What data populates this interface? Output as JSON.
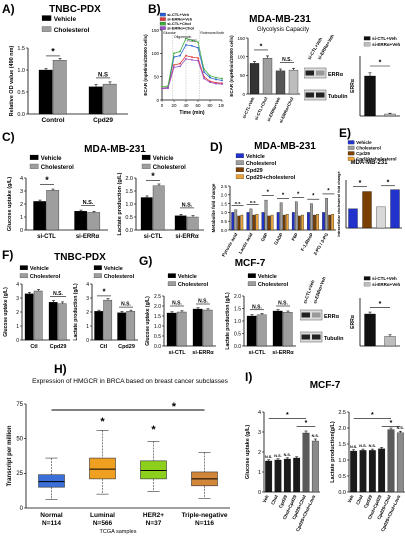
{
  "panels": {
    "A": {
      "letter": "A)",
      "title": "TNBC-PDX"
    },
    "B": {
      "letter": "B)",
      "title": "MDA-MB-231",
      "subtitle": "Glycolysis Capacity",
      "trace_legend": [
        "si-CTL+Veh",
        "si-ERRα+Veh",
        "si-CTL+Chol",
        "si-ERRα+Chol"
      ],
      "trace_markers": [
        "Glucose",
        "Oligomycin",
        "FCCP",
        "Rotenone/Antimycin A"
      ],
      "blot_labels": [
        "ERRα",
        "Tubulin"
      ]
    },
    "C": {
      "letter": "C)",
      "title": "MDA-MB-231"
    },
    "D": {
      "letter": "D)",
      "title": "MDA-MB-231"
    },
    "E": {
      "letter": "E)",
      "title": "MDA-MB-231"
    },
    "F": {
      "letter": "F)",
      "title": "TNBC-PDX"
    },
    "G": {
      "letter": "G)",
      "title": "MCF-7",
      "blot_labels": [
        "ERRα",
        "Tubulin"
      ]
    },
    "H": {
      "letter": "H)",
      "title": "Expression of HMGCR in BRCA based on breast cancer subclasses"
    },
    "I": {
      "letter": "I)",
      "title": "MCF-7"
    }
  },
  "colors": {
    "vehicle": "#000000",
    "cholesterol": "#9e9e9e",
    "cpd29": "#7b3f00",
    "cpd29_chol": "#e8a33c",
    "blue": "#2233cc",
    "normal_box": "#3b6fd8",
    "luminal_box": "#f0a020",
    "her2_box": "#8ccf1d",
    "tneg_box": "#d2863a",
    "star": "#1a1a1a"
  },
  "chart_data": [
    {
      "panel": "A",
      "type": "bar",
      "ylabel": "Relative OD value (490 nm)",
      "categories": [
        "Control",
        "Cpd29"
      ],
      "series": [
        {
          "name": "Vehicle",
          "values": [
            1.0,
            0.62
          ],
          "errors": [
            0.03,
            0.05
          ]
        },
        {
          "name": "Cholesterol",
          "values": [
            1.22,
            0.68
          ],
          "errors": [
            0.04,
            0.05
          ]
        }
      ],
      "ylim": [
        0,
        1.5
      ],
      "yticks": [
        "0.0",
        "0.5",
        "1.0",
        "1.5"
      ],
      "annotations": [
        "*",
        "N.S"
      ]
    },
    {
      "panel": "B",
      "type": "line",
      "xlabel": "Time (min)",
      "ylabel": "ECAR (mpH/min/20000 cells)",
      "x": [
        0,
        10,
        20,
        30,
        40,
        50,
        60,
        70,
        80,
        90,
        100
      ],
      "series": [
        {
          "name": "si-CTL+Veh",
          "values": [
            25,
            27,
            92,
            95,
            118,
            116,
            112,
            60,
            48,
            44,
            42
          ]
        },
        {
          "name": "si-ERRα+Veh",
          "values": [
            25,
            26,
            75,
            78,
            95,
            92,
            90,
            50,
            40,
            37,
            36
          ]
        },
        {
          "name": "si-CTL+Chol",
          "values": [
            28,
            30,
            100,
            104,
            132,
            128,
            124,
            66,
            52,
            48,
            46
          ]
        },
        {
          "name": "si-ERRα+Chol",
          "values": [
            24,
            25,
            70,
            72,
            88,
            86,
            84,
            46,
            38,
            35,
            34
          ]
        }
      ],
      "xlim": [
        0,
        100
      ],
      "ylim": [
        0,
        150
      ],
      "xticks": [
        "0",
        "20",
        "40",
        "60",
        "80",
        "100"
      ],
      "yticks": [
        "0",
        "50",
        "100",
        "150"
      ]
    },
    {
      "panel": "B",
      "type": "bar",
      "ylabel": "ECAR (mpH/min/20000 cells)",
      "categories": [
        "si-CTL+Veh",
        "si-CTL+Chol",
        "si-ERRα+Veh",
        "si-ERRα+Chol"
      ],
      "values": [
        82,
        96,
        62,
        64
      ],
      "errors": [
        5,
        6,
        5,
        5
      ],
      "ylim": [
        0,
        150
      ],
      "yticks": [
        "0",
        "50",
        "100",
        "150"
      ],
      "annotations": [
        "*",
        "N.S."
      ]
    },
    {
      "panel": "B",
      "type": "bar",
      "ylabel": "ERRα",
      "categories": [
        "si-CTL+Veh",
        "si-ERRα+Veh"
      ],
      "legend": [
        "si-CTL+Veh",
        "si-ERRα+Veh"
      ],
      "values": [
        1.0,
        0.05
      ],
      "errors": [
        0.08,
        0.02
      ],
      "ylim": [
        0,
        1.5
      ],
      "annotations": [
        "*"
      ]
    },
    {
      "panel": "C",
      "type": "bar",
      "ylabel": "Glucose uptake (g/L)",
      "categories": [
        "si-CTL",
        "si-ERRα"
      ],
      "series": [
        {
          "name": "Vehicle",
          "values": [
            2.2,
            1.45
          ],
          "errors": [
            0.1,
            0.08
          ]
        },
        {
          "name": "Cholesterol",
          "values": [
            3.05,
            1.35
          ],
          "errors": [
            0.1,
            0.08
          ]
        }
      ],
      "ylim": [
        0,
        4
      ],
      "yticks": [
        "0",
        "1",
        "2",
        "3",
        "4"
      ],
      "annotations": [
        "*",
        "N.S."
      ]
    },
    {
      "panel": "C",
      "type": "bar",
      "ylabel": "Lactate production (g/L)",
      "categories": [
        "si-CTL",
        "si-ERRα"
      ],
      "series": [
        {
          "name": "Vehicle",
          "values": [
            1.25,
            0.55
          ],
          "errors": [
            0.06,
            0.05
          ]
        },
        {
          "name": "Cholesterol",
          "values": [
            1.7,
            0.5
          ],
          "errors": [
            0.07,
            0.05
          ]
        }
      ],
      "ylim": [
        0,
        2.0
      ],
      "yticks": [
        "0.0",
        "0.5",
        "1.0",
        "1.5",
        "2.0"
      ],
      "annotations": [
        "*",
        "N.S."
      ]
    },
    {
      "panel": "D",
      "type": "bar",
      "ylabel": "Metabolite fold change",
      "categories": [
        "Pyruvic acid",
        "Lactic acid",
        "G6P",
        "GADP",
        "F6P",
        "F-1,6bisP",
        "2-PG / 3-PG"
      ],
      "series": [
        {
          "name": "Vehicle",
          "values": [
            1.0,
            1.0,
            1.0,
            1.0,
            1.0,
            1.0,
            1.0
          ]
        },
        {
          "name": "Cholesterol",
          "values": [
            1.15,
            1.2,
            1.7,
            1.55,
            1.6,
            1.5,
            1.8
          ]
        },
        {
          "name": "Cpd29",
          "values": [
            0.8,
            0.85,
            0.8,
            0.85,
            0.8,
            0.85,
            0.85
          ]
        },
        {
          "name": "Cpd29+cholesterol",
          "values": [
            0.85,
            0.9,
            0.85,
            0.9,
            0.85,
            0.9,
            0.9
          ]
        }
      ],
      "ylim": [
        0,
        2.5
      ],
      "yticks": [
        "0.0",
        "0.5",
        "1.0",
        "1.5",
        "2.0",
        "2.5"
      ],
      "annotations": [
        "n.s",
        "n.s",
        "*",
        "*",
        "*",
        "*",
        "*"
      ]
    },
    {
      "panel": "E",
      "type": "bar",
      "ylabel": "Intracellular cholesterol fold change",
      "categories": [
        "Vehicle",
        "Cholesterol",
        "Cpd29",
        "Cpd29+cholesterol"
      ],
      "legend": [
        "Vehicle",
        "Cholesterol",
        "Cpd29",
        "Cpd29+cholesterol"
      ],
      "values": [
        1.0,
        1.9,
        1.1,
        2.0
      ],
      "ylim": [
        0,
        2.5
      ],
      "annotations": [
        "*",
        "*"
      ]
    },
    {
      "panel": "F",
      "type": "bar",
      "ylabel": "Glucose uptake (g/L)",
      "categories": [
        "Ctl",
        "Cpd29"
      ],
      "series": [
        {
          "name": "Vehicle",
          "values": [
            3.3,
            2.7
          ],
          "errors": [
            0.1,
            0.12
          ]
        },
        {
          "name": "Cholesterol",
          "values": [
            3.5,
            2.6
          ],
          "errors": [
            0.1,
            0.12
          ]
        }
      ],
      "ylim": [
        0,
        4
      ],
      "yticks": [
        "0",
        "1",
        "2",
        "3",
        "4"
      ],
      "annotations": [
        "N.S."
      ]
    },
    {
      "panel": "F",
      "type": "bar",
      "ylabel": "Lactate production (g/L)",
      "categories": [
        "Ctl",
        "Cpd29"
      ],
      "series": [
        {
          "name": "Vehicle",
          "values": [
            2.05,
            1.95
          ],
          "errors": [
            0.08,
            0.08
          ]
        },
        {
          "name": "Cholesterol",
          "values": [
            2.85,
            2.05
          ],
          "errors": [
            0.1,
            0.08
          ]
        }
      ],
      "ylim": [
        0,
        4
      ],
      "yticks": [
        "0",
        "1",
        "2",
        "3",
        "4"
      ],
      "annotations": [
        "*",
        "N.S."
      ]
    },
    {
      "panel": "G",
      "type": "bar",
      "ylabel": "Glucose uptake (g/L)",
      "categories": [
        "si-CTL",
        "si-ERRα"
      ],
      "series": [
        {
          "name": "Vehicle",
          "values": [
            1.65,
            1.85
          ],
          "errors": [
            0.06,
            0.06
          ]
        },
        {
          "name": "Cholesterol",
          "values": [
            1.7,
            1.8
          ],
          "errors": [
            0.06,
            0.06
          ]
        }
      ],
      "ylim": [
        0,
        2.5
      ],
      "yticks": [
        "0.0",
        "0.5",
        "1.0",
        "1.5",
        "2.0",
        "2.5"
      ],
      "annotations": [
        "N.S.",
        "N.S."
      ]
    },
    {
      "panel": "G",
      "type": "bar",
      "ylabel": "Lactate production (g/L)",
      "categories": [
        "si-CTL",
        "si-ERRα"
      ],
      "series": [
        {
          "name": "Vehicle",
          "values": [
            1.2,
            1.4
          ],
          "errors": [
            0.05,
            0.05
          ]
        },
        {
          "name": "Cholesterol",
          "values": [
            1.25,
            1.35
          ],
          "errors": [
            0.05,
            0.05
          ]
        }
      ],
      "ylim": [
        0,
        2.0
      ],
      "yticks": [
        "0.0",
        "0.5",
        "1.0",
        "1.5",
        "2.0"
      ],
      "annotations": [
        "N.S.",
        "N.S."
      ]
    },
    {
      "panel": "G",
      "type": "bar",
      "ylabel": "ERRα",
      "categories": [
        "si-CTL+Veh",
        "si-ERRα+Veh"
      ],
      "legend": [
        "si-CTL+Veh",
        "si-ERRα+Veh"
      ],
      "values": [
        1.0,
        0.3
      ],
      "errors": [
        0.06,
        0.05
      ],
      "ylim": [
        0,
        1.5
      ],
      "annotations": [
        "*"
      ]
    },
    {
      "panel": "H",
      "type": "box",
      "ylabel": "Transcript per million",
      "xlabel": "TCGA samples",
      "categories": [
        "Normal",
        "Luminal",
        "HER2+",
        "Triple-negative"
      ],
      "sample_sizes": [
        "N=114",
        "N=566",
        "N=37",
        "N=116"
      ],
      "boxes": [
        {
          "min": 6,
          "q1": 15,
          "median": 19,
          "q3": 24,
          "max": 36
        },
        {
          "min": 10,
          "q1": 21,
          "median": 28,
          "q3": 36,
          "max": 56
        },
        {
          "min": 12,
          "q1": 21,
          "median": 27,
          "q3": 34,
          "max": 48
        },
        {
          "min": 7,
          "q1": 16,
          "median": 21,
          "q3": 26,
          "max": 40
        }
      ],
      "ylim": [
        0,
        75
      ],
      "yticks": [
        "0",
        "25",
        "50",
        "75"
      ],
      "annotations": [
        "*",
        "*",
        "*"
      ]
    },
    {
      "panel": "I",
      "type": "bar",
      "ylabel": "Glucose uptake (g/L)",
      "categories": [
        "Veh",
        "Chol",
        "Cpd29",
        "Chol+Cpd29",
        "Cpd29+Chol",
        "Cpd29+Chol+Lova"
      ],
      "values": [
        1.55,
        1.6,
        1.65,
        1.7,
        2.95,
        2.55
      ],
      "errors": [
        0.06,
        0.06,
        0.06,
        0.06,
        0.1,
        0.1
      ],
      "ylim": [
        0,
        4
      ],
      "yticks": [
        "0",
        "1",
        "2",
        "3",
        "4"
      ],
      "annotations": [
        "N.S.",
        "N.S.",
        "N.S.",
        "*",
        "*",
        "N.S."
      ]
    },
    {
      "panel": "I",
      "type": "bar",
      "ylabel": "Lactate production(g/L)",
      "categories": [
        "Veh",
        "Chol",
        "Cpd29",
        "Chol+Cpd29",
        "Cpd29+Chol",
        "Cpd29+Chol+Lova"
      ],
      "values": [
        1.28,
        1.3,
        1.3,
        1.35,
        1.95,
        1.85
      ],
      "errors": [
        0.04,
        0.04,
        0.04,
        0.04,
        0.05,
        0.05
      ],
      "ylim": [
        0,
        2.5
      ],
      "yticks": [
        "0.0",
        "0.5",
        "1.0",
        "1.5",
        "2.0",
        "2.5"
      ],
      "annotations": [
        "N.S.",
        "N.S.",
        "N.S.",
        "*",
        "*",
        "N.S."
      ]
    }
  ]
}
